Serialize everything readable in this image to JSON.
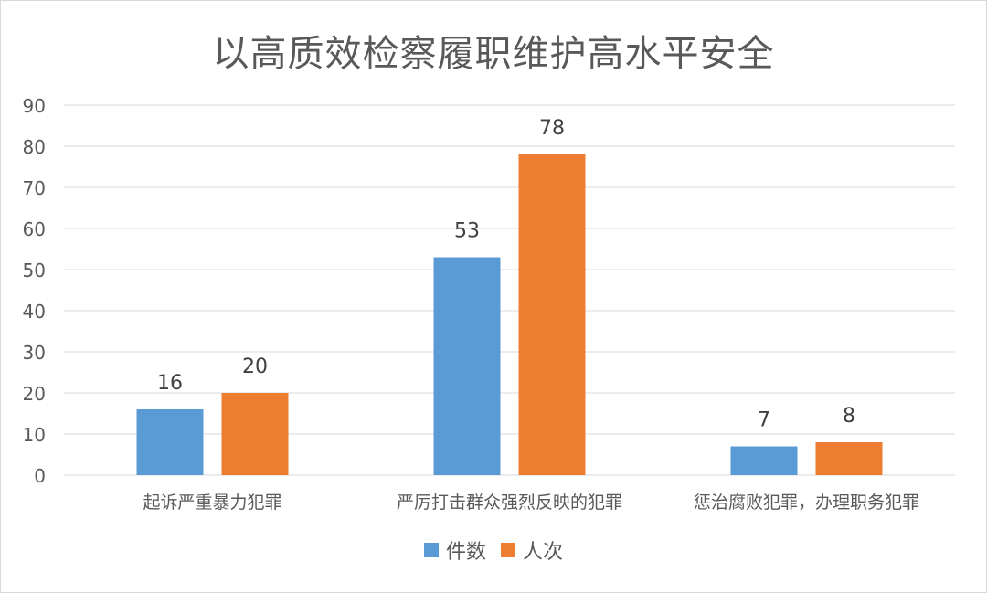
{
  "chart_data": {
    "type": "bar",
    "title": "以高质效检察履职维护高水平安全",
    "categories": [
      "起诉严重暴力犯罪",
      "严厉打击群众强烈反映的犯罪",
      "惩治腐败犯罪，办理职务犯罪"
    ],
    "series": [
      {
        "name": "件数",
        "values": [
          16,
          53,
          7
        ],
        "color": "#5b9bd5"
      },
      {
        "name": "人次",
        "values": [
          20,
          78,
          8
        ],
        "color": "#ed7d31"
      }
    ],
    "ylim": [
      0,
      90
    ],
    "yticks": [
      0,
      10,
      20,
      30,
      40,
      50,
      60,
      70,
      80,
      90
    ],
    "grid": true,
    "legend_position": "bottom",
    "xlabel": "",
    "ylabel": ""
  },
  "colors": {
    "grid": "#d9d9d9",
    "axis_text": "#595959",
    "title": "#595959"
  }
}
